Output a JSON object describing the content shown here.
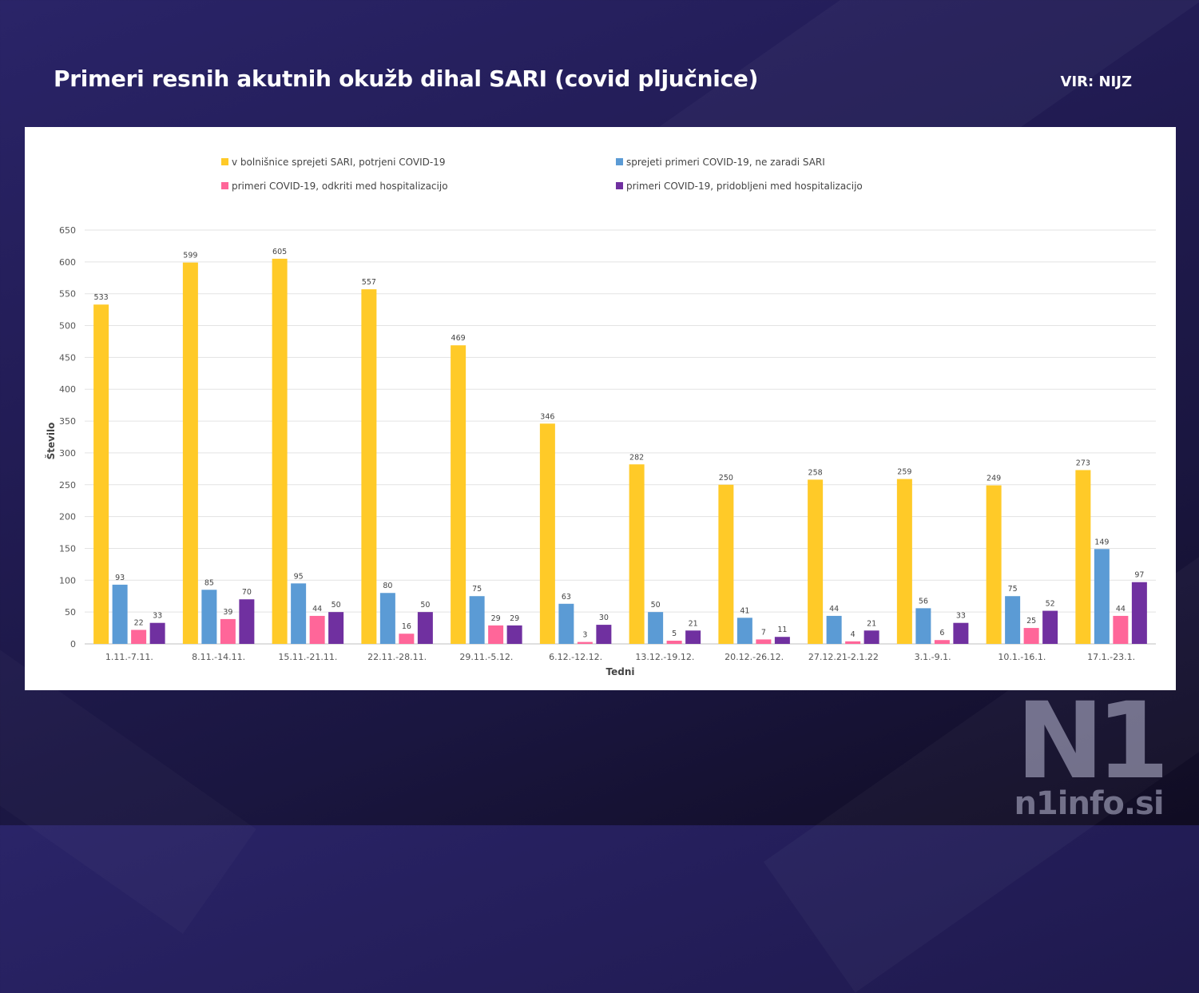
{
  "header": {
    "title": "Primeri resnih akutnih okužb dihal SARI (covid pljučnice)",
    "source": "VIR: NIJZ"
  },
  "brand": {
    "logo_mark": "N1",
    "site": "n1info.si"
  },
  "chart_data": {
    "type": "bar",
    "title": "",
    "xlabel": "Tedni",
    "ylabel": "Število",
    "ylim": [
      0,
      650
    ],
    "yticks": [
      0,
      50,
      100,
      150,
      200,
      250,
      300,
      350,
      400,
      450,
      500,
      550,
      600,
      650
    ],
    "grid": true,
    "legend_position": "top",
    "categories": [
      "1.11.-7.11.",
      "8.11.-14.11.",
      "15.11.-21.11.",
      "22.11.-28.11.",
      "29.11.-5.12.",
      "6.12.-12.12.",
      "13.12.-19.12.",
      "20.12.-26.12.",
      "27.12.21-2.1.22",
      "3.1.-9.1.",
      "10.1.-16.1.",
      "17.1.-23.1."
    ],
    "series": [
      {
        "name": "v bolnišnice sprejeti SARI, potrjeni COVID-19",
        "color": "#FFCA28",
        "values": [
          533,
          599,
          605,
          557,
          469,
          346,
          282,
          250,
          258,
          259,
          249,
          273
        ]
      },
      {
        "name": "sprejeti primeri COVID-19, ne zaradi SARI",
        "color": "#5B9BD5",
        "values": [
          93,
          85,
          95,
          80,
          75,
          63,
          50,
          41,
          44,
          56,
          75,
          149
        ]
      },
      {
        "name": "primeri COVID-19, odkriti med hospitalizacijo",
        "color": "#FF6699",
        "values": [
          22,
          39,
          44,
          16,
          29,
          3,
          5,
          7,
          4,
          6,
          25,
          44
        ]
      },
      {
        "name": "primeri COVID-19, pridobljeni med hospitalizacijo",
        "color": "#7030A0",
        "values": [
          33,
          70,
          50,
          50,
          29,
          30,
          21,
          11,
          21,
          33,
          52,
          97
        ]
      }
    ]
  }
}
